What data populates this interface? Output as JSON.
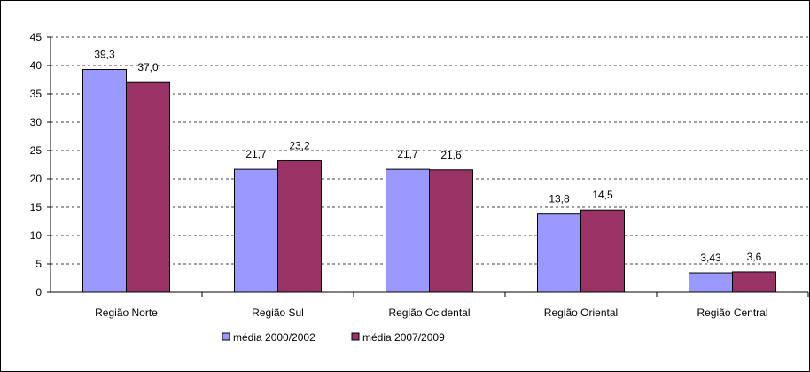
{
  "chart_data": {
    "type": "bar",
    "title": "",
    "xlabel": "",
    "ylabel": "",
    "categories": [
      "Região Norte",
      "Região Sul",
      "Região Ocidental",
      "Região Oriental",
      "Região Central"
    ],
    "series": [
      {
        "name": "média 2000/2002",
        "values": [
          39.3,
          21.7,
          21.7,
          13.8,
          3.43
        ],
        "labels": [
          "39,3",
          "21,7",
          "21,7",
          "13,8",
          "3,43"
        ],
        "color": "#9999ff"
      },
      {
        "name": "média 2007/2009",
        "values": [
          37.0,
          23.2,
          21.6,
          14.5,
          3.6
        ],
        "labels": [
          "37,0",
          "23,2",
          "21,6",
          "14,5",
          "3,6"
        ],
        "color": "#993366"
      }
    ],
    "ylim": [
      0,
      45
    ],
    "yticks": [
      0,
      5,
      10,
      15,
      20,
      25,
      30,
      35,
      40,
      45
    ],
    "grid": true,
    "legend_position": "bottom"
  }
}
